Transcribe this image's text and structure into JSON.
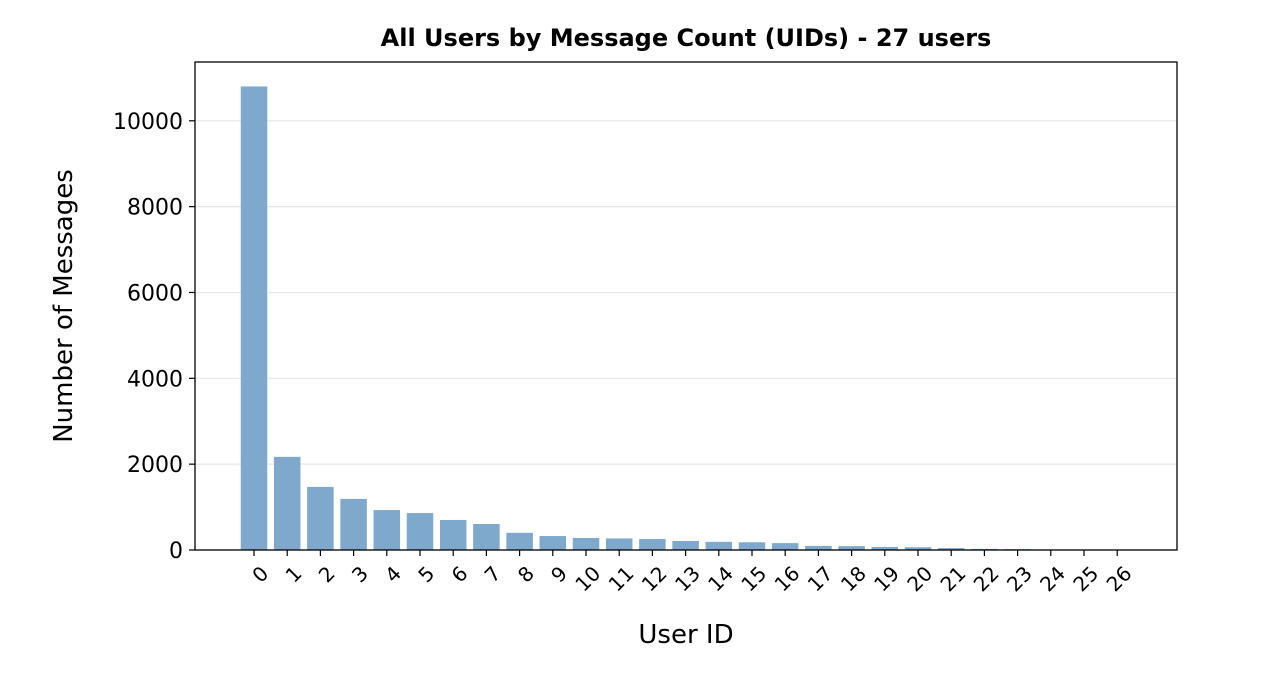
{
  "chart_data": {
    "type": "bar",
    "title": "All Users by Message Count (UIDs) - 27 users",
    "x_label": "User ID",
    "y_label": "Number of Messages",
    "categories": [
      "0",
      "1",
      "2",
      "3",
      "4",
      "5",
      "6",
      "7",
      "8",
      "9",
      "10",
      "11",
      "12",
      "13",
      "14",
      "15",
      "16",
      "17",
      "18",
      "19",
      "20",
      "21",
      "22",
      "23",
      "24",
      "25",
      "26"
    ],
    "values": [
      10800,
      2170,
      1470,
      1190,
      930,
      860,
      700,
      605,
      400,
      325,
      280,
      270,
      255,
      210,
      190,
      180,
      160,
      95,
      90,
      70,
      65,
      45,
      25,
      20,
      12,
      10,
      8
    ],
    "color": "#7fa8cd",
    "ylim": [
      0,
      11370
    ],
    "yticks": [
      0,
      2000,
      4000,
      6000,
      8000,
      10000
    ],
    "grid": true
  }
}
